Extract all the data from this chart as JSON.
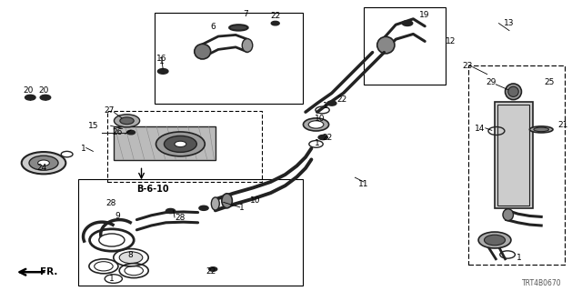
{
  "bg_color": "#ffffff",
  "line_color": "#000000",
  "part_color": "#222222",
  "label_color": "#000000",
  "diagram_code": "TRT4B0670",
  "fr_label": "FR.",
  "ref_label": "B-6-10",
  "title_fontsize": 7,
  "label_fontsize": 6.5,
  "small_fontsize": 5.5
}
